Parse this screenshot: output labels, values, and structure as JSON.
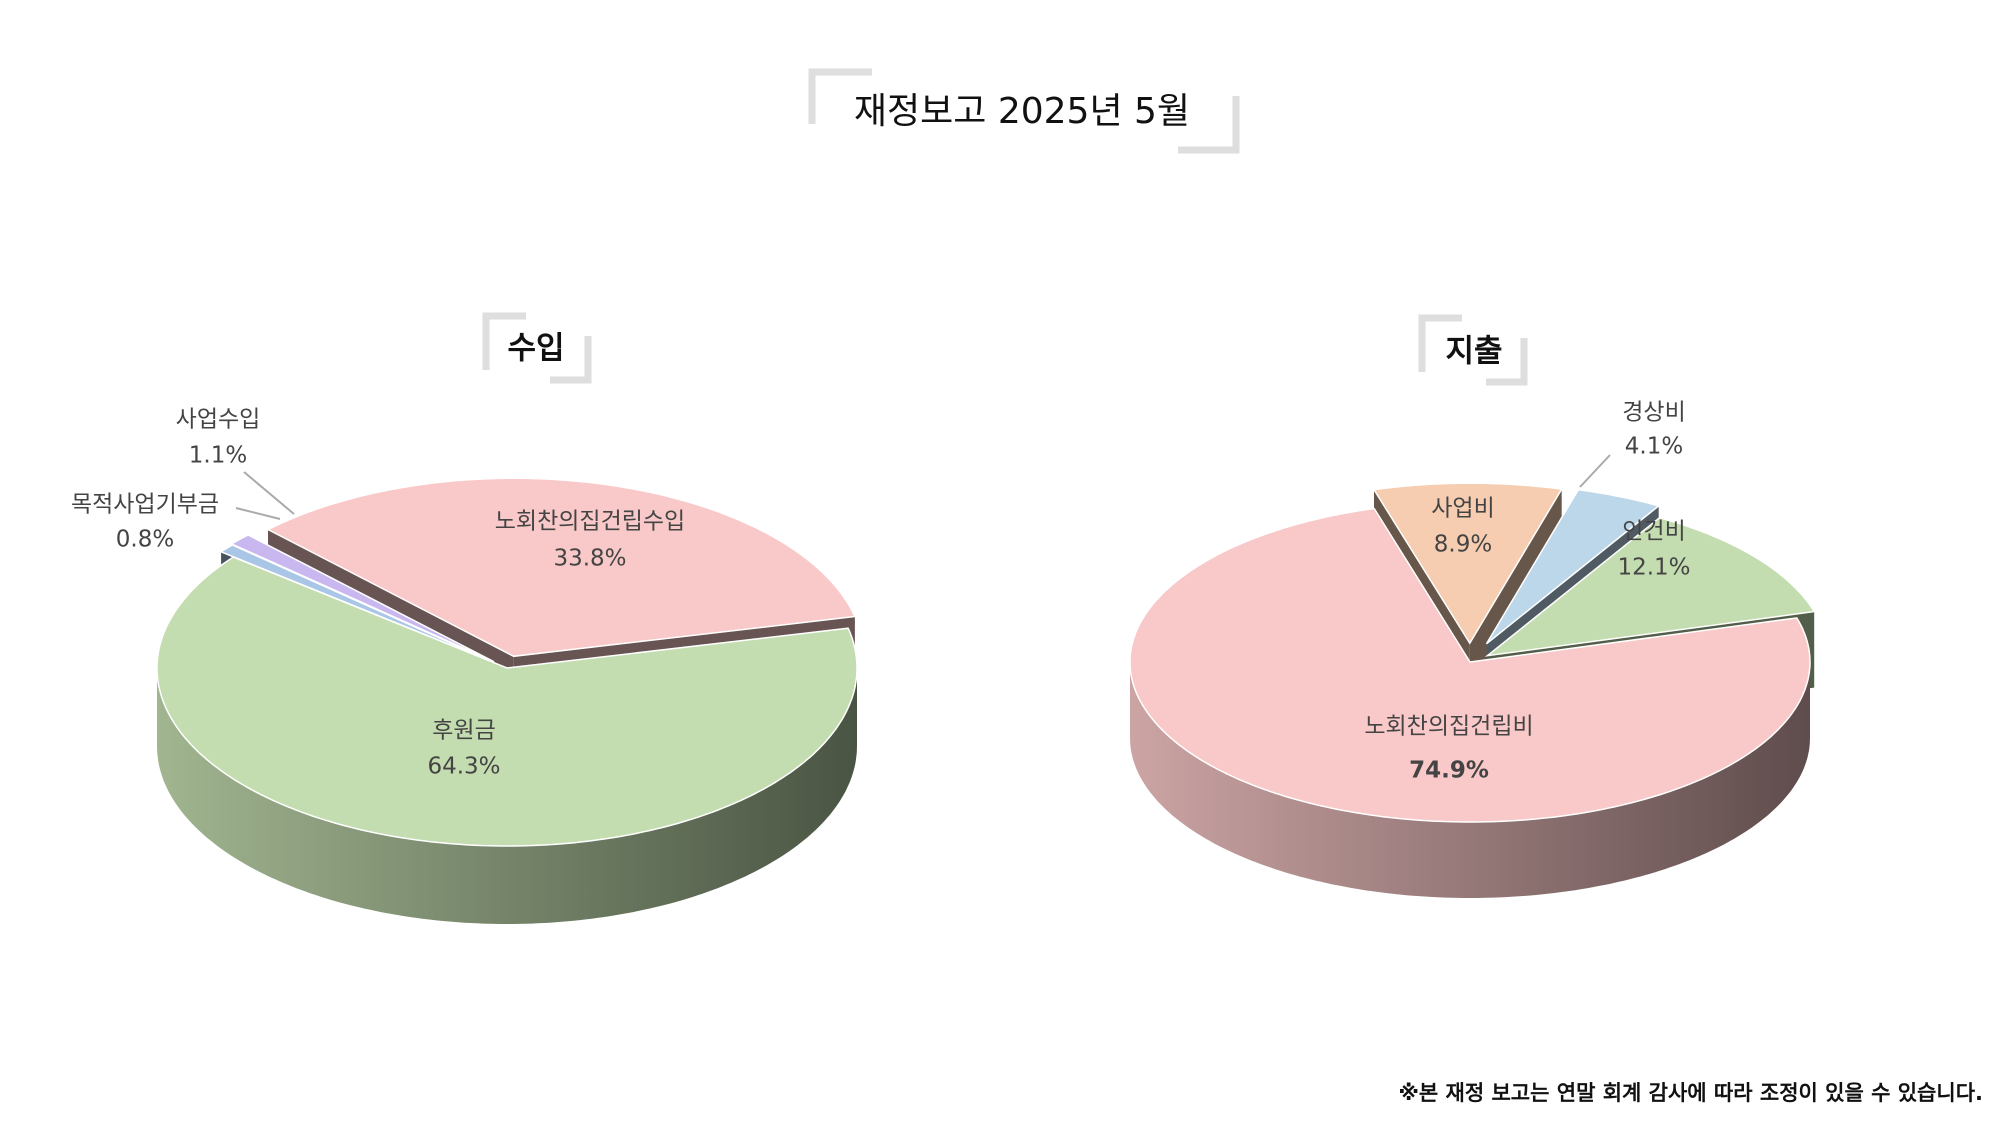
{
  "title": "재정보고 2025년 5월",
  "footnote": "※본 재정 보고는 연말 회계 감사에 따라 조정이 있을 수 있습니다.",
  "chart_data": [
    {
      "type": "pie",
      "title": "수입",
      "categories": [
        "노회찬의집건립수입",
        "후원금",
        "목적사업기부금",
        "사업수입"
      ],
      "values": [
        33.8,
        64.3,
        0.8,
        1.1
      ],
      "value_labels": [
        "33.8%",
        "64.3%",
        "0.8%",
        "1.1%"
      ],
      "colors": [
        "#f9c8c8",
        "#c4ddb0",
        "#a9c6e6",
        "#c9b8f0"
      ]
    },
    {
      "type": "pie",
      "title": "지출",
      "categories": [
        "노회찬의집건립비",
        "사업비",
        "경상비",
        "인건비"
      ],
      "values": [
        74.9,
        8.9,
        4.1,
        12.1
      ],
      "value_labels": [
        "74.9%",
        "8.9%",
        "4.1%",
        "12.1%"
      ],
      "colors": [
        "#f9c8c8",
        "#f6cdb0",
        "#bcd6ea",
        "#c4ddb0"
      ]
    }
  ]
}
